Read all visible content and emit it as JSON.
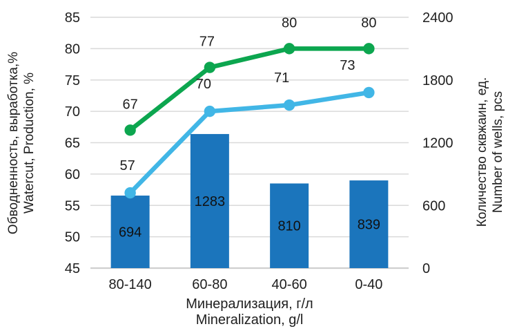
{
  "chart_data": {
    "type": "bar",
    "subtype": "combo-bar-and-lines",
    "title": "",
    "legend": "none",
    "grid": true,
    "categories": [
      "80-140",
      "60-80",
      "40-60",
      "0-40"
    ],
    "x_axis": {
      "title_ru": "Минерализация, г/л",
      "title_en": "Mineralization, g/l"
    },
    "left_axis": {
      "title_ru": "Обводненность, выработка,%",
      "title_en": "Watercut, Production, %",
      "min": 45,
      "max": 85,
      "step": 5,
      "ticks": [
        85,
        80,
        75,
        70,
        65,
        60,
        55,
        50,
        45
      ]
    },
    "right_axis": {
      "title_ru": "Количество сквжаин, ед.",
      "title_en": "Number of wells, pcs",
      "min": 0,
      "max": 2400,
      "step": 600,
      "ticks": [
        2400,
        1800,
        1200,
        600,
        0
      ]
    },
    "bar_series": {
      "axis": "right",
      "values": [
        694,
        1283,
        810,
        839
      ],
      "labels": [
        "694",
        "1283",
        "810",
        "839"
      ],
      "color": "#1B75BC",
      "label_color": "#111111"
    },
    "line_series": [
      {
        "axis": "left",
        "values": [
          67,
          77,
          80,
          80
        ],
        "labels": [
          "67",
          "77",
          "80",
          "80"
        ],
        "color": "#0CA64F"
      },
      {
        "axis": "left",
        "values": [
          57,
          70,
          71,
          73
        ],
        "labels": [
          "57",
          "70",
          "71",
          "73"
        ],
        "color": "#41B6E6"
      }
    ],
    "colors": {
      "gridline": "#D9D9D9",
      "axis_line": "#CFCFCF",
      "text": "#202020"
    }
  }
}
